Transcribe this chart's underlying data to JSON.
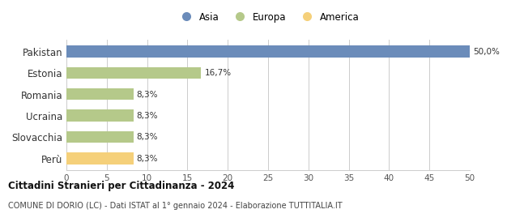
{
  "categories": [
    "Pakistan",
    "Estonia",
    "Romania",
    "Ucraina",
    "Slovacchia",
    "Perù"
  ],
  "values": [
    50.0,
    16.7,
    8.3,
    8.3,
    8.3,
    8.3
  ],
  "labels": [
    "50,0%",
    "16,7%",
    "8,3%",
    "8,3%",
    "8,3%",
    "8,3%"
  ],
  "bar_colors": [
    "#6b8cba",
    "#b5c98a",
    "#b5c98a",
    "#b5c98a",
    "#b5c98a",
    "#f5d07a"
  ],
  "legend_labels": [
    "Asia",
    "Europa",
    "America"
  ],
  "legend_colors": [
    "#6b8cba",
    "#b5c98a",
    "#f5d07a"
  ],
  "xlim": [
    0,
    50
  ],
  "xticks": [
    0,
    5,
    10,
    15,
    20,
    25,
    30,
    35,
    40,
    45,
    50
  ],
  "title": "Cittadini Stranieri per Cittadinanza - 2024",
  "subtitle": "COMUNE DI DORIO (LC) - Dati ISTAT al 1° gennaio 2024 - Elaborazione TUTTITALIA.IT",
  "background_color": "#ffffff",
  "grid_color": "#cccccc"
}
